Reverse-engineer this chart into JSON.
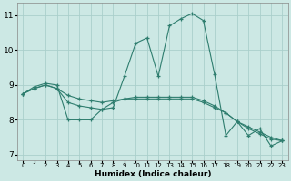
{
  "xlabel": "Humidex (Indice chaleur)",
  "background_color": "#cce8e4",
  "line_color": "#2e7d6e",
  "grid_color": "#aacfcb",
  "xlim": [
    -0.5,
    23.5
  ],
  "ylim": [
    6.85,
    11.35
  ],
  "yticks": [
    7,
    8,
    9,
    10,
    11
  ],
  "xticks": [
    0,
    1,
    2,
    3,
    4,
    5,
    6,
    7,
    8,
    9,
    10,
    11,
    12,
    13,
    14,
    15,
    16,
    17,
    18,
    19,
    20,
    21,
    22,
    23
  ],
  "series": [
    {
      "x": [
        0,
        1,
        2,
        3,
        4,
        5,
        6,
        7,
        8,
        9,
        10,
        11,
        12,
        13,
        14,
        15,
        16,
        17,
        18,
        19,
        20,
        21,
        22,
        23
      ],
      "y": [
        8.75,
        8.95,
        9.05,
        9.0,
        8.0,
        8.0,
        8.0,
        8.3,
        8.35,
        9.25,
        10.2,
        10.35,
        9.25,
        10.7,
        10.9,
        11.05,
        10.85,
        9.3,
        7.55,
        7.95,
        7.55,
        7.75,
        7.25,
        7.4
      ]
    },
    {
      "x": [
        0,
        1,
        2,
        3,
        4,
        5,
        6,
        7,
        8,
        9,
        10,
        11,
        12,
        13,
        14,
        15,
        16,
        17,
        18,
        19,
        20,
        21,
        22,
        23
      ],
      "y": [
        8.75,
        8.9,
        9.0,
        8.9,
        8.5,
        8.4,
        8.35,
        8.3,
        8.5,
        8.6,
        8.6,
        8.6,
        8.6,
        8.6,
        8.6,
        8.6,
        8.5,
        8.35,
        8.2,
        7.95,
        7.8,
        7.65,
        7.5,
        7.4
      ]
    },
    {
      "x": [
        0,
        1,
        2,
        3,
        4,
        5,
        6,
        7,
        8,
        9,
        10,
        11,
        12,
        13,
        14,
        15,
        16,
        17,
        18,
        19,
        20,
        21,
        22,
        23
      ],
      "y": [
        8.75,
        8.9,
        9.0,
        8.9,
        8.7,
        8.6,
        8.55,
        8.5,
        8.55,
        8.6,
        8.65,
        8.65,
        8.65,
        8.65,
        8.65,
        8.65,
        8.55,
        8.4,
        8.2,
        7.95,
        7.75,
        7.6,
        7.45,
        7.4
      ]
    }
  ]
}
